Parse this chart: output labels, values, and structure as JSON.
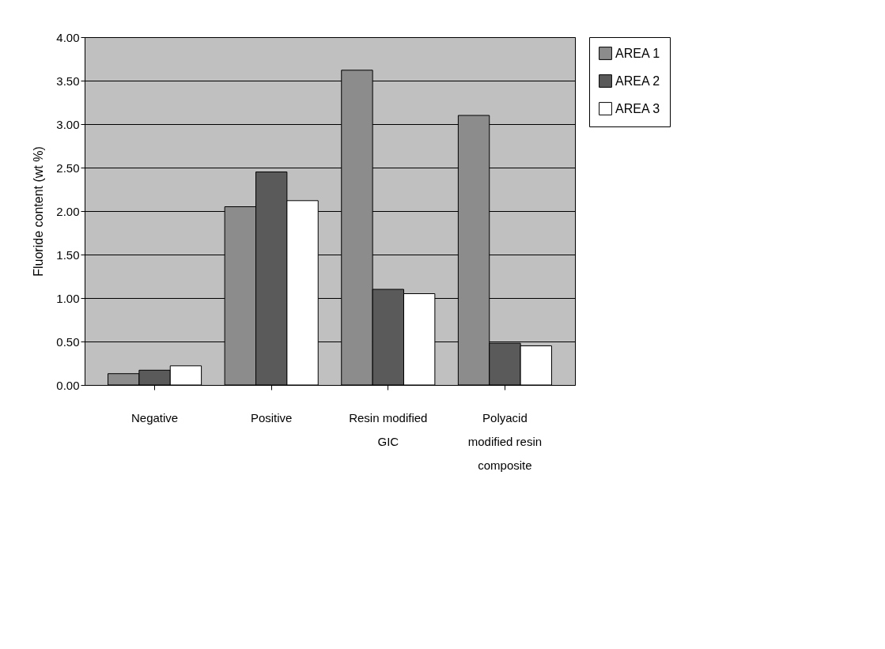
{
  "chart_data": {
    "type": "bar",
    "ylabel": "Fluoride content (wt %)",
    "categories": [
      "Negative",
      "Positive",
      "Resin modified GIC",
      "Polyacid modified resin composite"
    ],
    "series": [
      {
        "name": "AREA 1",
        "color": "#8c8c8c",
        "values": [
          0.13,
          2.05,
          3.62,
          3.1
        ]
      },
      {
        "name": "AREA 2",
        "color": "#5a5a5a",
        "values": [
          0.17,
          2.45,
          1.1,
          0.48
        ]
      },
      {
        "name": "AREA 3",
        "color": "#ffffff",
        "values": [
          0.22,
          2.12,
          1.05,
          0.45
        ]
      }
    ],
    "ylim": [
      0,
      4.0
    ],
    "yticks": [
      {
        "value": 0,
        "label": "0.00"
      },
      {
        "value": 0.5,
        "label": "0.50"
      },
      {
        "value": 1.0,
        "label": "1.00"
      },
      {
        "value": 1.5,
        "label": "1.50"
      },
      {
        "value": 2.0,
        "label": "2.00"
      },
      {
        "value": 2.5,
        "label": "2.50"
      },
      {
        "value": 3.0,
        "label": "3.00"
      },
      {
        "value": 3.5,
        "label": "3.50"
      },
      {
        "value": 4.0,
        "label": "4.00"
      }
    ],
    "grid": "y",
    "legend": "right"
  }
}
